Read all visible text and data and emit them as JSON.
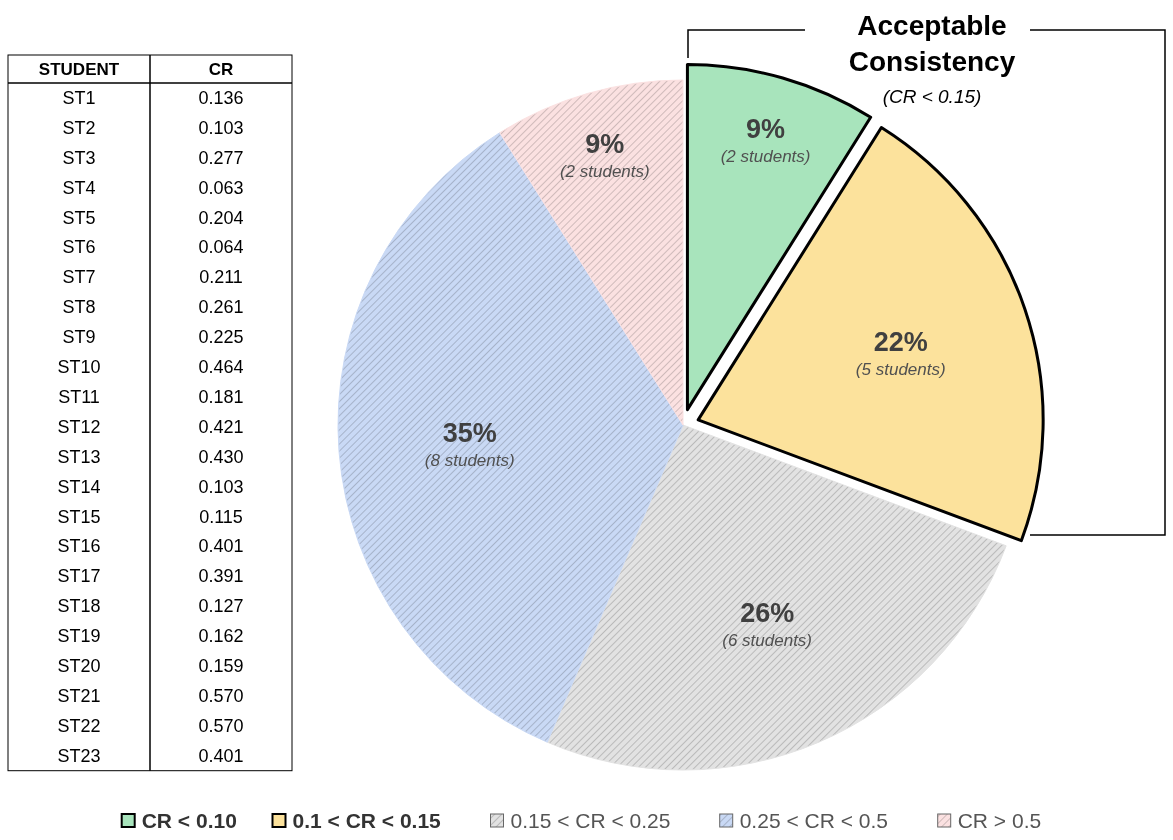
{
  "chart_data": [
    {
      "type": "other",
      "xlabel": "STUDENT",
      "ylabel": "CR",
      "categories": [
        "ST1",
        "ST2",
        "ST3",
        "ST4",
        "ST5",
        "ST6",
        "ST7",
        "ST8",
        "ST9",
        "ST10",
        "ST11",
        "ST12",
        "ST13",
        "ST14",
        "ST15",
        "ST16",
        "ST17",
        "ST18",
        "ST19",
        "ST20",
        "ST21",
        "ST22",
        "ST23"
      ],
      "values": [
        0.136,
        0.103,
        0.277,
        0.063,
        0.204,
        0.064,
        0.211,
        0.261,
        0.225,
        0.464,
        0.181,
        0.421,
        0.43,
        0.103,
        0.115,
        0.401,
        0.391,
        0.127,
        0.162,
        0.159,
        0.57,
        0.57,
        0.401
      ],
      "value_labels": [
        "0.136",
        "0.103",
        "0.277",
        "0.063",
        "0.204",
        "0.064",
        "0.211",
        "0.261",
        "0.225",
        "0.464",
        "0.181",
        "0.421",
        "0.430",
        "0.103",
        "0.115",
        "0.401",
        "0.391",
        "0.127",
        "0.162",
        "0.159",
        "0.570",
        "0.570",
        "0.401"
      ]
    },
    {
      "type": "pie",
      "categories": [
        "CR < 0.10",
        "0.1 < CR < 0.15",
        "0.15 < CR < 0.25",
        "0.25 < CR < 0.5",
        "CR > 0.5"
      ],
      "values": [
        9,
        22,
        26,
        35,
        9
      ],
      "value_labels": [
        "9%",
        "22%",
        "26%",
        "35%",
        "9%"
      ],
      "colors": [
        "#a8e4bc",
        "#fce29c",
        "#e2e2e2",
        "#c9d9f5",
        "#fbe1e1"
      ],
      "legend": "bottom",
      "annotations": [
        {
          "text": "(2 students)",
          "x": "CR < 0.10"
        },
        {
          "text": "(5 students)",
          "x": "0.1 < CR < 0.15"
        },
        {
          "text": "(6 students)",
          "x": "0.15 < CR < 0.25"
        },
        {
          "text": "(8 students)",
          "x": "0.25 < CR < 0.5"
        },
        {
          "text": "(2 students)",
          "x": "CR > 0.5"
        },
        "Acceptable Consistency",
        "(CR < 0.15)"
      ]
    }
  ]
}
